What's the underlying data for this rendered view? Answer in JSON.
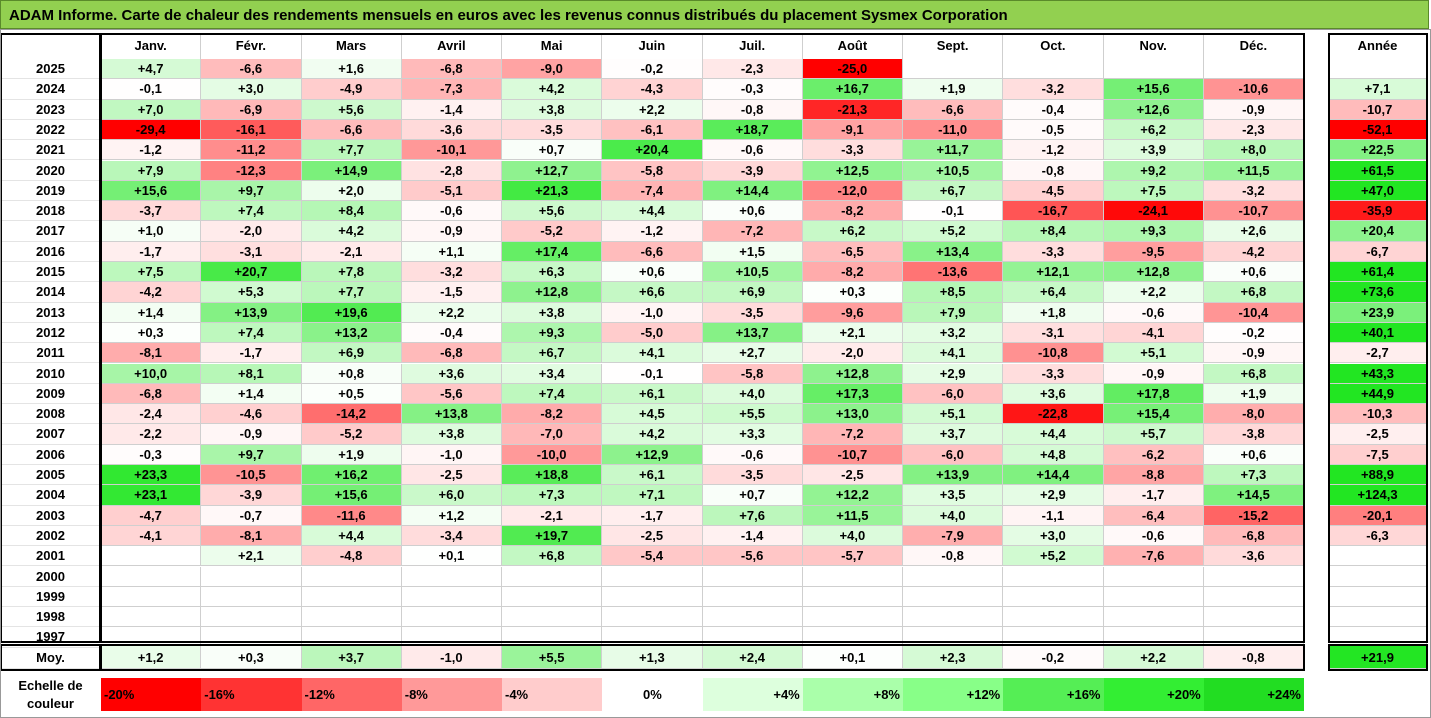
{
  "title": "ADAM Informe. Carte de chaleur des rendements mensuels en euros avec les revenus connus distribués du placement Sysmex Corporation",
  "chart_data": {
    "type": "heatmap",
    "title": "ADAM Informe. Carte de chaleur des rendements mensuels en euros avec les revenus connus distribués du placement Sysmex Corporation",
    "columns": [
      "Janv.",
      "Févr.",
      "Mars",
      "Avril",
      "Mai",
      "Juin",
      "Juil.",
      "Août",
      "Sept.",
      "Oct.",
      "Nov.",
      "Déc."
    ],
    "annual_header": "Année",
    "rows": [
      {
        "year": "2025",
        "values": [
          "+4,7",
          "-6,6",
          "+1,6",
          "-6,8",
          "-9,0",
          "-0,2",
          "-2,3",
          "-25,0",
          "",
          "",
          "",
          ""
        ],
        "annual": ""
      },
      {
        "year": "2024",
        "values": [
          "-0,1",
          "+3,0",
          "-4,9",
          "-7,3",
          "+4,2",
          "-4,3",
          "-0,3",
          "+16,7",
          "+1,9",
          "-3,2",
          "+15,6",
          "-10,6"
        ],
        "annual": "+7,1"
      },
      {
        "year": "2023",
        "values": [
          "+7,0",
          "-6,9",
          "+5,6",
          "-1,4",
          "+3,8",
          "+2,2",
          "-0,8",
          "-21,3",
          "-6,6",
          "-0,4",
          "+12,6",
          "-0,9"
        ],
        "annual": "-10,7"
      },
      {
        "year": "2022",
        "values": [
          "-29,4",
          "-16,1",
          "-6,6",
          "-3,6",
          "-3,5",
          "-6,1",
          "+18,7",
          "-9,1",
          "-11,0",
          "-0,5",
          "+6,2",
          "-2,3"
        ],
        "annual": "-52,1"
      },
      {
        "year": "2021",
        "values": [
          "-1,2",
          "-11,2",
          "+7,7",
          "-10,1",
          "+0,7",
          "+20,4",
          "-0,6",
          "-3,3",
          "+11,7",
          "-1,2",
          "+3,9",
          "+8,0"
        ],
        "annual": "+22,5"
      },
      {
        "year": "2020",
        "values": [
          "+7,9",
          "-12,3",
          "+14,9",
          "-2,8",
          "+12,7",
          "-5,8",
          "-3,9",
          "+12,5",
          "+10,5",
          "-0,8",
          "+9,2",
          "+11,5"
        ],
        "annual": "+61,5"
      },
      {
        "year": "2019",
        "values": [
          "+15,6",
          "+9,7",
          "+2,0",
          "-5,1",
          "+21,3",
          "-7,4",
          "+14,4",
          "-12,0",
          "+6,7",
          "-4,5",
          "+7,5",
          "-3,2"
        ],
        "annual": "+47,0"
      },
      {
        "year": "2018",
        "values": [
          "-3,7",
          "+7,4",
          "+8,4",
          "-0,6",
          "+5,6",
          "+4,4",
          "+0,6",
          "-8,2",
          "-0,1",
          "-16,7",
          "-24,1",
          "-10,7"
        ],
        "annual": "-35,9"
      },
      {
        "year": "2017",
        "values": [
          "+1,0",
          "-2,0",
          "+4,2",
          "-0,9",
          "-5,2",
          "-1,2",
          "-7,2",
          "+6,2",
          "+5,2",
          "+8,4",
          "+9,3",
          "+2,6"
        ],
        "annual": "+20,4"
      },
      {
        "year": "2016",
        "values": [
          "-1,7",
          "-3,1",
          "-2,1",
          "+1,1",
          "+17,4",
          "-6,6",
          "+1,5",
          "-6,5",
          "+13,4",
          "-3,3",
          "-9,5",
          "-4,2"
        ],
        "annual": "-6,7"
      },
      {
        "year": "2015",
        "values": [
          "+7,5",
          "+20,7",
          "+7,8",
          "-3,2",
          "+6,3",
          "+0,6",
          "+10,5",
          "-8,2",
          "-13,6",
          "+12,1",
          "+12,8",
          "+0,6"
        ],
        "annual": "+61,4"
      },
      {
        "year": "2014",
        "values": [
          "-4,2",
          "+5,3",
          "+7,7",
          "-1,5",
          "+12,8",
          "+6,6",
          "+6,9",
          "+0,3",
          "+8,5",
          "+6,4",
          "+2,2",
          "+6,8"
        ],
        "annual": "+73,6"
      },
      {
        "year": "2013",
        "values": [
          "+1,4",
          "+13,9",
          "+19,6",
          "+2,2",
          "+3,8",
          "-1,0",
          "-3,5",
          "-9,6",
          "+7,9",
          "+1,8",
          "-0,6",
          "-10,4"
        ],
        "annual": "+23,9"
      },
      {
        "year": "2012",
        "values": [
          "+0,3",
          "+7,4",
          "+13,2",
          "-0,4",
          "+9,3",
          "-5,0",
          "+13,7",
          "+2,1",
          "+3,2",
          "-3,1",
          "-4,1",
          "-0,2"
        ],
        "annual": "+40,1"
      },
      {
        "year": "2011",
        "values": [
          "-8,1",
          "-1,7",
          "+6,9",
          "-6,8",
          "+6,7",
          "+4,1",
          "+2,7",
          "-2,0",
          "+4,1",
          "-10,8",
          "+5,1",
          "-0,9"
        ],
        "annual": "-2,7"
      },
      {
        "year": "2010",
        "values": [
          "+10,0",
          "+8,1",
          "+0,8",
          "+3,6",
          "+3,4",
          "-0,1",
          "-5,8",
          "+12,8",
          "+2,9",
          "-3,3",
          "-0,9",
          "+6,8"
        ],
        "annual": "+43,3"
      },
      {
        "year": "2009",
        "values": [
          "-6,8",
          "+1,4",
          "+0,5",
          "-5,6",
          "+7,4",
          "+6,1",
          "+4,0",
          "+17,3",
          "-6,0",
          "+3,6",
          "+17,8",
          "+1,9"
        ],
        "annual": "+44,9"
      },
      {
        "year": "2008",
        "values": [
          "-2,4",
          "-4,6",
          "-14,2",
          "+13,8",
          "-8,2",
          "+4,5",
          "+5,5",
          "+13,0",
          "+5,1",
          "-22,8",
          "+15,4",
          "-8,0"
        ],
        "annual": "-10,3"
      },
      {
        "year": "2007",
        "values": [
          "-2,2",
          "-0,9",
          "-5,2",
          "+3,8",
          "-7,0",
          "+4,2",
          "+3,3",
          "-7,2",
          "+3,7",
          "+4,4",
          "+5,7",
          "-3,8"
        ],
        "annual": "-2,5"
      },
      {
        "year": "2006",
        "values": [
          "-0,3",
          "+9,7",
          "+1,9",
          "-1,0",
          "-10,0",
          "+12,9",
          "-0,6",
          "-10,7",
          "-6,0",
          "+4,8",
          "-6,2",
          "+0,6"
        ],
        "annual": "-7,5"
      },
      {
        "year": "2005",
        "values": [
          "+23,3",
          "-10,5",
          "+16,2",
          "-2,5",
          "+18,8",
          "+6,1",
          "-3,5",
          "-2,5",
          "+13,9",
          "+14,4",
          "-8,8",
          "+7,3"
        ],
        "annual": "+88,9"
      },
      {
        "year": "2004",
        "values": [
          "+23,1",
          "-3,9",
          "+15,6",
          "+6,0",
          "+7,3",
          "+7,1",
          "+0,7",
          "+12,2",
          "+3,5",
          "+2,9",
          "-1,7",
          "+14,5"
        ],
        "annual": "+124,3"
      },
      {
        "year": "2003",
        "values": [
          "-4,7",
          "-0,7",
          "-11,6",
          "+1,2",
          "-2,1",
          "-1,7",
          "+7,6",
          "+11,5",
          "+4,0",
          "-1,1",
          "-6,4",
          "-15,2"
        ],
        "annual": "-20,1"
      },
      {
        "year": "2002",
        "values": [
          "-4,1",
          "-8,1",
          "+4,4",
          "-3,4",
          "+19,7",
          "-2,5",
          "-1,4",
          "+4,0",
          "-7,9",
          "+3,0",
          "-0,6",
          "-6,8"
        ],
        "annual": "-6,3"
      },
      {
        "year": "2001",
        "values": [
          "",
          "+2,1",
          "-4,8",
          "+0,1",
          "+6,8",
          "-5,4",
          "-5,6",
          "-5,7",
          "-0,8",
          "+5,2",
          "-7,6",
          "-3,6"
        ],
        "annual": ""
      },
      {
        "year": "2000",
        "values": [
          "",
          "",
          "",
          "",
          "",
          "",
          "",
          "",
          "",
          "",
          "",
          ""
        ],
        "annual": ""
      },
      {
        "year": "1999",
        "values": [
          "",
          "",
          "",
          "",
          "",
          "",
          "",
          "",
          "",
          "",
          "",
          ""
        ],
        "annual": ""
      },
      {
        "year": "1998",
        "values": [
          "",
          "",
          "",
          "",
          "",
          "",
          "",
          "",
          "",
          "",
          "",
          ""
        ],
        "annual": ""
      },
      {
        "year": "1997",
        "values": [
          "",
          "",
          "",
          "",
          "",
          "",
          "",
          "",
          "",
          "",
          "",
          ""
        ],
        "annual": ""
      }
    ],
    "average_row": {
      "label": "Moy.",
      "values": [
        "+1,2",
        "+0,3",
        "+3,7",
        "-1,0",
        "+5,5",
        "+1,3",
        "+2,4",
        "+0,1",
        "+2,3",
        "-0,2",
        "+2,2",
        "-0,8"
      ],
      "annual": "+21,9"
    },
    "scale": {
      "label": "Echelle de couleur",
      "entries": [
        {
          "label": "-20%",
          "value": -20,
          "color": "#ff0000"
        },
        {
          "label": "-16%",
          "value": -16,
          "color": "#ff3333"
        },
        {
          "label": "-12%",
          "value": -12,
          "color": "#ff6666"
        },
        {
          "label": "-8%",
          "value": -8,
          "color": "#ff9999"
        },
        {
          "label": "-4%",
          "value": -4,
          "color": "#ffcccc"
        },
        {
          "label": "0%",
          "value": 0,
          "color": "#ffffff"
        },
        {
          "label": "+4%",
          "value": 4,
          "color": "#ddffdd"
        },
        {
          "label": "+8%",
          "value": 8,
          "color": "#aaffaa"
        },
        {
          "label": "+12%",
          "value": 12,
          "color": "#88ff88"
        },
        {
          "label": "+16%",
          "value": 16,
          "color": "#55ee55"
        },
        {
          "label": "+20%",
          "value": 20,
          "color": "#33ee33"
        },
        {
          "label": "+24%",
          "value": 24,
          "color": "#22dd22"
        }
      ]
    }
  }
}
